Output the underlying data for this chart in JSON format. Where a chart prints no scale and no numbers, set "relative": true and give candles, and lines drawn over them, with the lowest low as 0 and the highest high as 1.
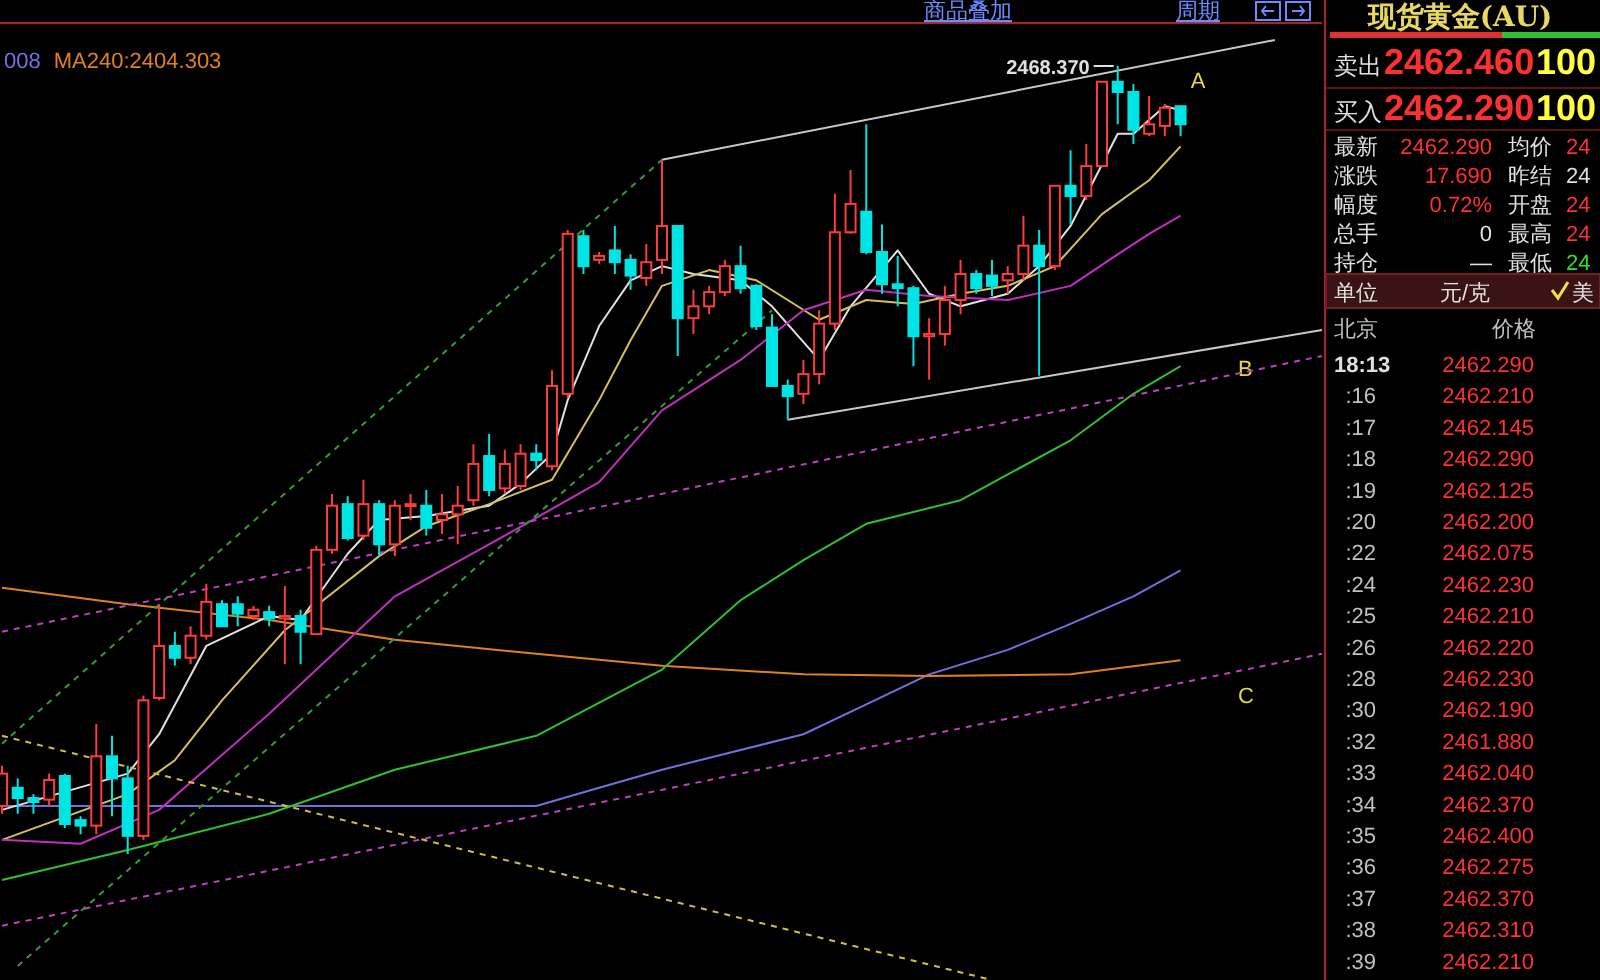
{
  "chart_data": [
    {
      "type": "candlestick",
      "relative": true,
      "legend": "top left",
      "categories": [
        null,
        null,
        null,
        null,
        null,
        null,
        null,
        null,
        null,
        null,
        null,
        null,
        null,
        null,
        null,
        null,
        null,
        null,
        null,
        null,
        null,
        null,
        null,
        null,
        null,
        null,
        null,
        null,
        null,
        null,
        null,
        null,
        null,
        null,
        null,
        null,
        null,
        null,
        null,
        null,
        null,
        null,
        null,
        null,
        null,
        null,
        null,
        null,
        null,
        null,
        null,
        null,
        null,
        null,
        null,
        null,
        null,
        null,
        null,
        null,
        null,
        null,
        null,
        null,
        null,
        null,
        null,
        null,
        null,
        null,
        null,
        null,
        null,
        null,
        null,
        null,
        null,
        null,
        null,
        null,
        null,
        null,
        null,
        null,
        null
      ],
      "ohlc": [
        [
          0.061,
          0.112,
          0.051,
          0.102
        ],
        [
          0.084,
          0.096,
          0.051,
          0.071
        ],
        [
          0.071,
          0.076,
          0.051,
          0.066
        ],
        [
          0.069,
          0.102,
          0.061,
          0.094
        ],
        [
          0.099,
          0.102,
          0.033,
          0.038
        ],
        [
          0.043,
          0.048,
          0.025,
          0.036
        ],
        [
          0.036,
          0.165,
          0.025,
          0.124
        ],
        [
          0.124,
          0.15,
          0.048,
          0.096
        ],
        [
          0.096,
          0.112,
          0,
          0.023
        ],
        [
          0.023,
          0.201,
          0.018,
          0.195
        ],
        [
          0.198,
          0.317,
          0.195,
          0.264
        ],
        [
          0.264,
          0.282,
          0.239,
          0.249
        ],
        [
          0.249,
          0.289,
          0.241,
          0.277
        ],
        [
          0.277,
          0.343,
          0.272,
          0.32
        ],
        [
          0.317,
          0.322,
          0.289,
          0.289
        ],
        [
          0.317,
          0.327,
          0.289,
          0.305
        ],
        [
          0.302,
          0.315,
          0.297,
          0.31
        ],
        [
          0.307,
          0.315,
          0.289,
          0.299
        ],
        [
          0.299,
          0.34,
          0.241,
          0.302
        ],
        [
          0.302,
          0.31,
          0.241,
          0.282
        ],
        [
          0.279,
          0.391,
          0.279,
          0.386
        ],
        [
          0.386,
          0.457,
          0.381,
          0.442
        ],
        [
          0.444,
          0.454,
          0.398,
          0.401
        ],
        [
          0.404,
          0.475,
          0.398,
          0.444
        ],
        [
          0.444,
          0.449,
          0.378,
          0.393
        ],
        [
          0.393,
          0.449,
          0.378,
          0.442
        ],
        [
          0.442,
          0.457,
          0.424,
          0.444
        ],
        [
          0.442,
          0.462,
          0.404,
          0.414
        ],
        [
          0.424,
          0.457,
          0.406,
          0.431
        ],
        [
          0.431,
          0.467,
          0.393,
          0.442
        ],
        [
          0.449,
          0.52,
          0.442,
          0.495
        ],
        [
          0.505,
          0.533,
          0.454,
          0.462
        ],
        [
          0.464,
          0.513,
          0.457,
          0.495
        ],
        [
          0.467,
          0.52,
          0.462,
          0.508
        ],
        [
          0.508,
          0.52,
          0.487,
          0.5
        ],
        [
          0.492,
          0.614,
          0.487,
          0.594
        ],
        [
          0.584,
          0.792,
          0.579,
          0.787
        ],
        [
          0.784,
          0.792,
          0.736,
          0.746
        ],
        [
          0.754,
          0.764,
          0.749,
          0.759
        ],
        [
          0.766,
          0.797,
          0.736,
          0.751
        ],
        [
          0.754,
          0.761,
          0.716,
          0.734
        ],
        [
          0.731,
          0.774,
          0.721,
          0.751
        ],
        [
          0.754,
          0.881,
          0.736,
          0.797
        ],
        [
          0.797,
          0.797,
          0.632,
          0.68
        ],
        [
          0.68,
          0.716,
          0.66,
          0.695
        ],
        [
          0.695,
          0.721,
          0.685,
          0.713
        ],
        [
          0.713,
          0.754,
          0.708,
          0.746
        ],
        [
          0.746,
          0.772,
          0.711,
          0.718
        ],
        [
          0.721,
          0.723,
          0.665,
          0.67
        ],
        [
          0.668,
          0.685,
          0.594,
          0.594
        ],
        [
          0.594,
          0.602,
          0.551,
          0.581
        ],
        [
          0.584,
          0.627,
          0.571,
          0.609
        ],
        [
          0.609,
          0.69,
          0.596,
          0.673
        ],
        [
          0.673,
          0.838,
          0.665,
          0.789
        ],
        [
          0.789,
          0.868,
          0.787,
          0.825
        ],
        [
          0.815,
          0.926,
          0.761,
          0.764
        ],
        [
          0.764,
          0.799,
          0.711,
          0.723
        ],
        [
          0.723,
          0.759,
          0.695,
          0.718
        ],
        [
          0.718,
          0.721,
          0.619,
          0.657
        ],
        [
          0.657,
          0.68,
          0.602,
          0.66
        ],
        [
          0.66,
          0.721,
          0.645,
          0.703
        ],
        [
          0.703,
          0.754,
          0.685,
          0.736
        ],
        [
          0.736,
          0.741,
          0.711,
          0.718
        ],
        [
          0.734,
          0.754,
          0.708,
          0.721
        ],
        [
          0.728,
          0.746,
          0.711,
          0.736
        ],
        [
          0.736,
          0.81,
          0.728,
          0.772
        ],
        [
          0.772,
          0.792,
          0.607,
          0.746
        ],
        [
          0.746,
          0.848,
          0.741,
          0.848
        ],
        [
          0.848,
          0.893,
          0.799,
          0.835
        ],
        [
          0.835,
          0.901,
          0.83,
          0.873
        ],
        [
          0.873,
          0.98,
          0.873,
          0.98
        ],
        [
          0.98,
          1,
          0.926,
          0.967
        ],
        [
          0.967,
          0.977,
          0.901,
          0.919
        ],
        [
          0.914,
          0.962,
          0.911,
          0.926
        ],
        [
          0.924,
          0.952,
          0.911,
          0.947
        ],
        [
          0.949,
          0.949,
          0.911,
          0.926
        ],
        null,
        null,
        null,
        null,
        null,
        null,
        null,
        null,
        null
      ],
      "series": [
        {
          "name": "008",
          "type": "line",
          "color": "#7070e0",
          "values": [
            0.061,
            null,
            null,
            null,
            null,
            null,
            null,
            null,
            null,
            null,
            null,
            null,
            null,
            null,
            null,
            null,
            null,
            null,
            null,
            null,
            null,
            null,
            null,
            null,
            null,
            null,
            null,
            null,
            null,
            null,
            null,
            null,
            null,
            null,
            0.061,
            null,
            null,
            null,
            0.084,
            null,
            null,
            null,
            0.107,
            null,
            null,
            null,
            null,
            null,
            null,
            null,
            null,
            0.152,
            null,
            null,
            null,
            0.19,
            null,
            null,
            null,
            0.228,
            null,
            null,
            null,
            null,
            0.259,
            null,
            null,
            null,
            0.292,
            null,
            null,
            null,
            0.327,
            null,
            null,
            0.36,
            null,
            null,
            null,
            null,
            null,
            null,
            null,
            null,
            null
          ]
        },
        {
          "name": "MA240:2404.303",
          "type": "line",
          "color": "#e08020",
          "values": [
            0.338,
            null,
            null,
            null,
            null,
            null,
            null,
            null,
            0.317,
            null,
            null,
            null,
            null,
            null,
            null,
            null,
            null,
            0.297,
            null,
            null,
            null,
            null,
            null,
            null,
            null,
            0.272,
            null,
            null,
            null,
            null,
            null,
            null,
            null,
            null,
            0.254,
            null,
            null,
            null,
            null,
            null,
            null,
            null,
            0.239,
            null,
            null,
            null,
            null,
            null,
            null,
            null,
            null,
            0.228,
            null,
            null,
            null,
            null,
            null,
            null,
            null,
            0.226,
            null,
            null,
            null,
            null,
            null,
            null,
            null,
            null,
            0.228,
            null,
            null,
            null,
            null,
            null,
            null,
            0.246,
            null,
            null,
            null,
            null,
            null,
            null,
            null,
            null,
            null
          ]
        },
        {
          "type": "line",
          "color": "#e0e0e0",
          "values": [
            0.056,
            null,
            null,
            null,
            null,
            null,
            null,
            null,
            0.102,
            null,
            0.152,
            null,
            null,
            0.264,
            null,
            null,
            null,
            0.302,
            null,
            0.297,
            null,
            null,
            0.381,
            null,
            0.424,
            null,
            null,
            0.429,
            null,
            null,
            null,
            0.442,
            null,
            0.47,
            null,
            0.508,
            0.576,
            null,
            0.67,
            null,
            0.728,
            null,
            0.746,
            null,
            0.736,
            null,
            null,
            0.728,
            null,
            0.695,
            null,
            null,
            0.627,
            null,
            0.695,
            null,
            null,
            0.766,
            null,
            0.711,
            null,
            0.695,
            null,
            null,
            0.711,
            null,
            0.746,
            null,
            0.797,
            null,
            null,
            0.914,
            0.914,
            null,
            0.949,
            0.944,
            null,
            null,
            null,
            null,
            null,
            null,
            null,
            null,
            null
          ]
        },
        {
          "type": "line",
          "color": "#d4c05a",
          "values": [
            0.018,
            null,
            null,
            null,
            null,
            null,
            null,
            null,
            0.076,
            null,
            null,
            0.119,
            null,
            null,
            0.195,
            null,
            null,
            null,
            0.284,
            null,
            0.315,
            null,
            null,
            null,
            0.378,
            null,
            null,
            0.416,
            null,
            null,
            null,
            0.444,
            null,
            null,
            null,
            0.475,
            null,
            null,
            0.576,
            null,
            0.652,
            null,
            0.721,
            null,
            null,
            0.741,
            null,
            null,
            0.728,
            null,
            null,
            null,
            0.678,
            null,
            null,
            0.703,
            null,
            null,
            0.698,
            null,
            null,
            0.711,
            null,
            null,
            0.721,
            null,
            null,
            0.746,
            null,
            null,
            0.812,
            null,
            null,
            0.855,
            null,
            0.898,
            null,
            null,
            null,
            null,
            null,
            null,
            null,
            null,
            null
          ]
        },
        {
          "type": "line",
          "color": "#c030c0",
          "values": [
            0.018,
            null,
            null,
            null,
            null,
            0.013,
            null,
            null,
            null,
            null,
            0.056,
            null,
            null,
            null,
            null,
            null,
            null,
            0.178,
            null,
            null,
            null,
            null,
            null,
            null,
            null,
            0.327,
            null,
            null,
            null,
            null,
            null,
            null,
            0.404,
            null,
            null,
            null,
            null,
            null,
            0.472,
            null,
            null,
            null,
            0.563,
            null,
            null,
            null,
            null,
            0.627,
            null,
            null,
            null,
            0.69,
            null,
            null,
            null,
            0.716,
            null,
            null,
            null,
            0.708,
            null,
            null,
            null,
            null,
            0.703,
            null,
            null,
            null,
            0.721,
            null,
            null,
            0.761,
            null,
            0.787,
            null,
            0.81,
            null,
            null,
            null,
            null,
            null,
            null,
            null,
            null,
            null
          ]
        },
        {
          "type": "line",
          "color": "#30c030",
          "values": [
            -0.033,
            null,
            null,
            null,
            null,
            null,
            null,
            null,
            0.005,
            null,
            null,
            null,
            null,
            null,
            null,
            null,
            null,
            0.051,
            null,
            null,
            null,
            null,
            null,
            null,
            null,
            0.107,
            null,
            null,
            null,
            null,
            null,
            null,
            null,
            null,
            0.15,
            null,
            null,
            null,
            null,
            null,
            null,
            null,
            0.234,
            null,
            null,
            null,
            null,
            0.322,
            null,
            null,
            null,
            0.373,
            null,
            null,
            null,
            0.419,
            null,
            null,
            null,
            null,
            null,
            0.449,
            null,
            null,
            null,
            null,
            null,
            null,
            0.525,
            null,
            null,
            null,
            0.584,
            null,
            null,
            0.619,
            null,
            null,
            null,
            null,
            null,
            null,
            null,
            null,
            null
          ]
        },
        {
          "name": "A",
          "type": "line",
          "color": "#c8c8c8",
          "line_style": "solid",
          "values": [
            null,
            null,
            null,
            null,
            null,
            null,
            null,
            null,
            null,
            null,
            null,
            null,
            null,
            null,
            null,
            null,
            null,
            null,
            null,
            null,
            null,
            null,
            null,
            null,
            null,
            null,
            null,
            null,
            null,
            null,
            null,
            null,
            null,
            null,
            null,
            null,
            null,
            null,
            null,
            null,
            null,
            null,
            0.881,
            null,
            null,
            null,
            null,
            null,
            null,
            null,
            null,
            null,
            null,
            null,
            null,
            null,
            null,
            null,
            null,
            null,
            null,
            null,
            null,
            null,
            null,
            null,
            null,
            null,
            null,
            null,
            null,
            null,
            null,
            null,
            null,
            null,
            null,
            null,
            null,
            null,
            null,
            1.033,
            null,
            null,
            null
          ]
        },
        {
          "name": "B",
          "type": "line",
          "color": "#c8c8c8",
          "line_style": "solid",
          "values": [
            null,
            null,
            null,
            null,
            null,
            null,
            null,
            null,
            null,
            null,
            null,
            null,
            null,
            null,
            null,
            null,
            null,
            null,
            null,
            null,
            null,
            null,
            null,
            null,
            null,
            null,
            null,
            null,
            null,
            null,
            null,
            null,
            null,
            null,
            null,
            null,
            null,
            null,
            null,
            null,
            null,
            null,
            null,
            null,
            null,
            null,
            null,
            null,
            null,
            null,
            0.551,
            null,
            null,
            null,
            null,
            null,
            null,
            null,
            null,
            null,
            null,
            null,
            null,
            null,
            null,
            null,
            null,
            null,
            null,
            null,
            null,
            null,
            null,
            null,
            null,
            null,
            null,
            null,
            null,
            null,
            null,
            null,
            null,
            null,
            0.665
          ]
        },
        {
          "name": "C",
          "type": "line",
          "color": "#c040c0",
          "line_style": "dashed",
          "values": [
            -0.091,
            null,
            null,
            null,
            null,
            null,
            null,
            null,
            null,
            null,
            null,
            null,
            null,
            null,
            null,
            null,
            null,
            null,
            null,
            null,
            null,
            null,
            null,
            null,
            null,
            null,
            null,
            null,
            null,
            null,
            null,
            null,
            null,
            null,
            null,
            null,
            null,
            null,
            null,
            null,
            null,
            null,
            null,
            null,
            null,
            null,
            null,
            null,
            null,
            null,
            null,
            null,
            null,
            null,
            null,
            null,
            null,
            null,
            null,
            null,
            null,
            null,
            null,
            null,
            null,
            null,
            null,
            null,
            null,
            null,
            null,
            null,
            null,
            null,
            null,
            null,
            null,
            null,
            null,
            null,
            null,
            null,
            null,
            null,
            0.254
          ]
        },
        {
          "type": "line",
          "color": "#30a030",
          "line_style": "dashed",
          "values": [
            0.14,
            null,
            null,
            null,
            null,
            null,
            null,
            null,
            null,
            null,
            null,
            null,
            null,
            null,
            null,
            null,
            null,
            null,
            null,
            null,
            null,
            null,
            null,
            null,
            null,
            null,
            null,
            null,
            null,
            null,
            null,
            null,
            null,
            null,
            null,
            null,
            null,
            null,
            null,
            null,
            null,
            null,
            0.881,
            null,
            null,
            null,
            null,
            null,
            null,
            null,
            null,
            null,
            null,
            null,
            null,
            null,
            null,
            null,
            null,
            null,
            null,
            null,
            null,
            null,
            null,
            null,
            null,
            null,
            null,
            null,
            null,
            null,
            null,
            null,
            null,
            null,
            null,
            null,
            null,
            null,
            null,
            null,
            null,
            null,
            null
          ]
        },
        {
          "type": "line",
          "color": "#30a030",
          "line_style": "dashed",
          "values": [
            null,
            -0.142,
            null,
            null,
            null,
            null,
            null,
            null,
            null,
            null,
            null,
            null,
            null,
            null,
            null,
            null,
            null,
            null,
            null,
            null,
            null,
            null,
            null,
            null,
            null,
            null,
            null,
            null,
            null,
            null,
            null,
            null,
            null,
            null,
            null,
            null,
            null,
            null,
            null,
            null,
            null,
            null,
            null,
            null,
            null,
            null,
            null,
            null,
            null,
            0.69,
            null,
            null,
            null,
            null,
            null,
            null,
            null,
            null,
            null,
            null,
            null,
            null,
            null,
            null,
            null,
            null,
            null,
            null,
            null,
            null,
            null,
            null,
            null,
            null,
            null,
            null,
            null,
            null,
            null,
            null,
            null,
            null,
            null,
            null,
            null
          ]
        },
        {
          "type": "line",
          "color": "#c040c0",
          "line_style": "dashed",
          "values": [
            0.282,
            null,
            null,
            null,
            null,
            null,
            null,
            null,
            null,
            null,
            null,
            null,
            null,
            null,
            null,
            null,
            null,
            null,
            null,
            null,
            null,
            null,
            null,
            null,
            null,
            null,
            null,
            null,
            null,
            null,
            null,
            null,
            null,
            null,
            null,
            null,
            null,
            null,
            null,
            null,
            null,
            null,
            null,
            null,
            null,
            null,
            null,
            null,
            null,
            null,
            null,
            null,
            null,
            null,
            null,
            null,
            null,
            null,
            null,
            null,
            null,
            null,
            null,
            null,
            null,
            null,
            null,
            null,
            null,
            null,
            null,
            null,
            null,
            null,
            null,
            null,
            null,
            null,
            null,
            null,
            null,
            null,
            null,
            null,
            0.632
          ]
        },
        {
          "type": "line",
          "color": "#d0c040",
          "line_style": "dashed",
          "values": [
            0.15,
            null,
            null,
            null,
            null,
            null,
            null,
            null,
            null,
            null,
            null,
            null,
            null,
            null,
            null,
            null,
            null,
            null,
            null,
            null,
            null,
            null,
            null,
            null,
            null,
            null,
            null,
            null,
            null,
            null,
            null,
            null,
            null,
            null,
            null,
            null,
            null,
            null,
            null,
            null,
            null,
            null,
            null,
            null,
            null,
            null,
            null,
            null,
            null,
            null,
            null,
            null,
            null,
            null,
            null,
            null,
            null,
            null,
            null,
            null,
            null,
            null,
            null,
            -0.16,
            null,
            null,
            null,
            null,
            null,
            null,
            null,
            null,
            null,
            null,
            null,
            null,
            null,
            null,
            null,
            null,
            null,
            null,
            null,
            null,
            null
          ]
        }
      ],
      "annotations": [
        "商品叠加",
        "周期",
        "2468.370"
      ]
    },
    {
      "type": "other",
      "title": "现货黄金(AU)",
      "annotations": [
        "卖出",
        "2462.460",
        "100",
        "买入",
        "2462.290",
        "100",
        "最新",
        "2462.290",
        "均价",
        "24",
        "涨跌",
        "17.690",
        "昨结",
        "24",
        "幅度",
        "0.72%",
        "开盘",
        "24",
        "总手",
        "0",
        "最高",
        "24",
        "持仓",
        "—",
        "最低",
        "24",
        "单位",
        "元/克",
        "美",
        "北京",
        "价格",
        "18:13",
        "2462.290",
        ":16",
        "2462.210",
        ":17",
        "2462.145",
        ":18",
        "2462.290",
        ":19",
        "2462.125",
        ":20",
        "2462.200",
        ":22",
        "2462.075",
        ":24",
        "2462.230",
        ":25",
        "2462.210",
        ":26",
        "2462.220",
        ":28",
        "2462.230",
        ":30",
        "2462.190",
        ":32",
        "2461.880",
        ":33",
        "2462.040",
        ":34",
        "2462.370",
        ":35",
        "2462.400",
        ":36",
        "2462.275",
        ":37",
        "2462.370",
        ":38",
        "2462.310",
        ":39",
        "2462.210"
      ]
    }
  ]
}
